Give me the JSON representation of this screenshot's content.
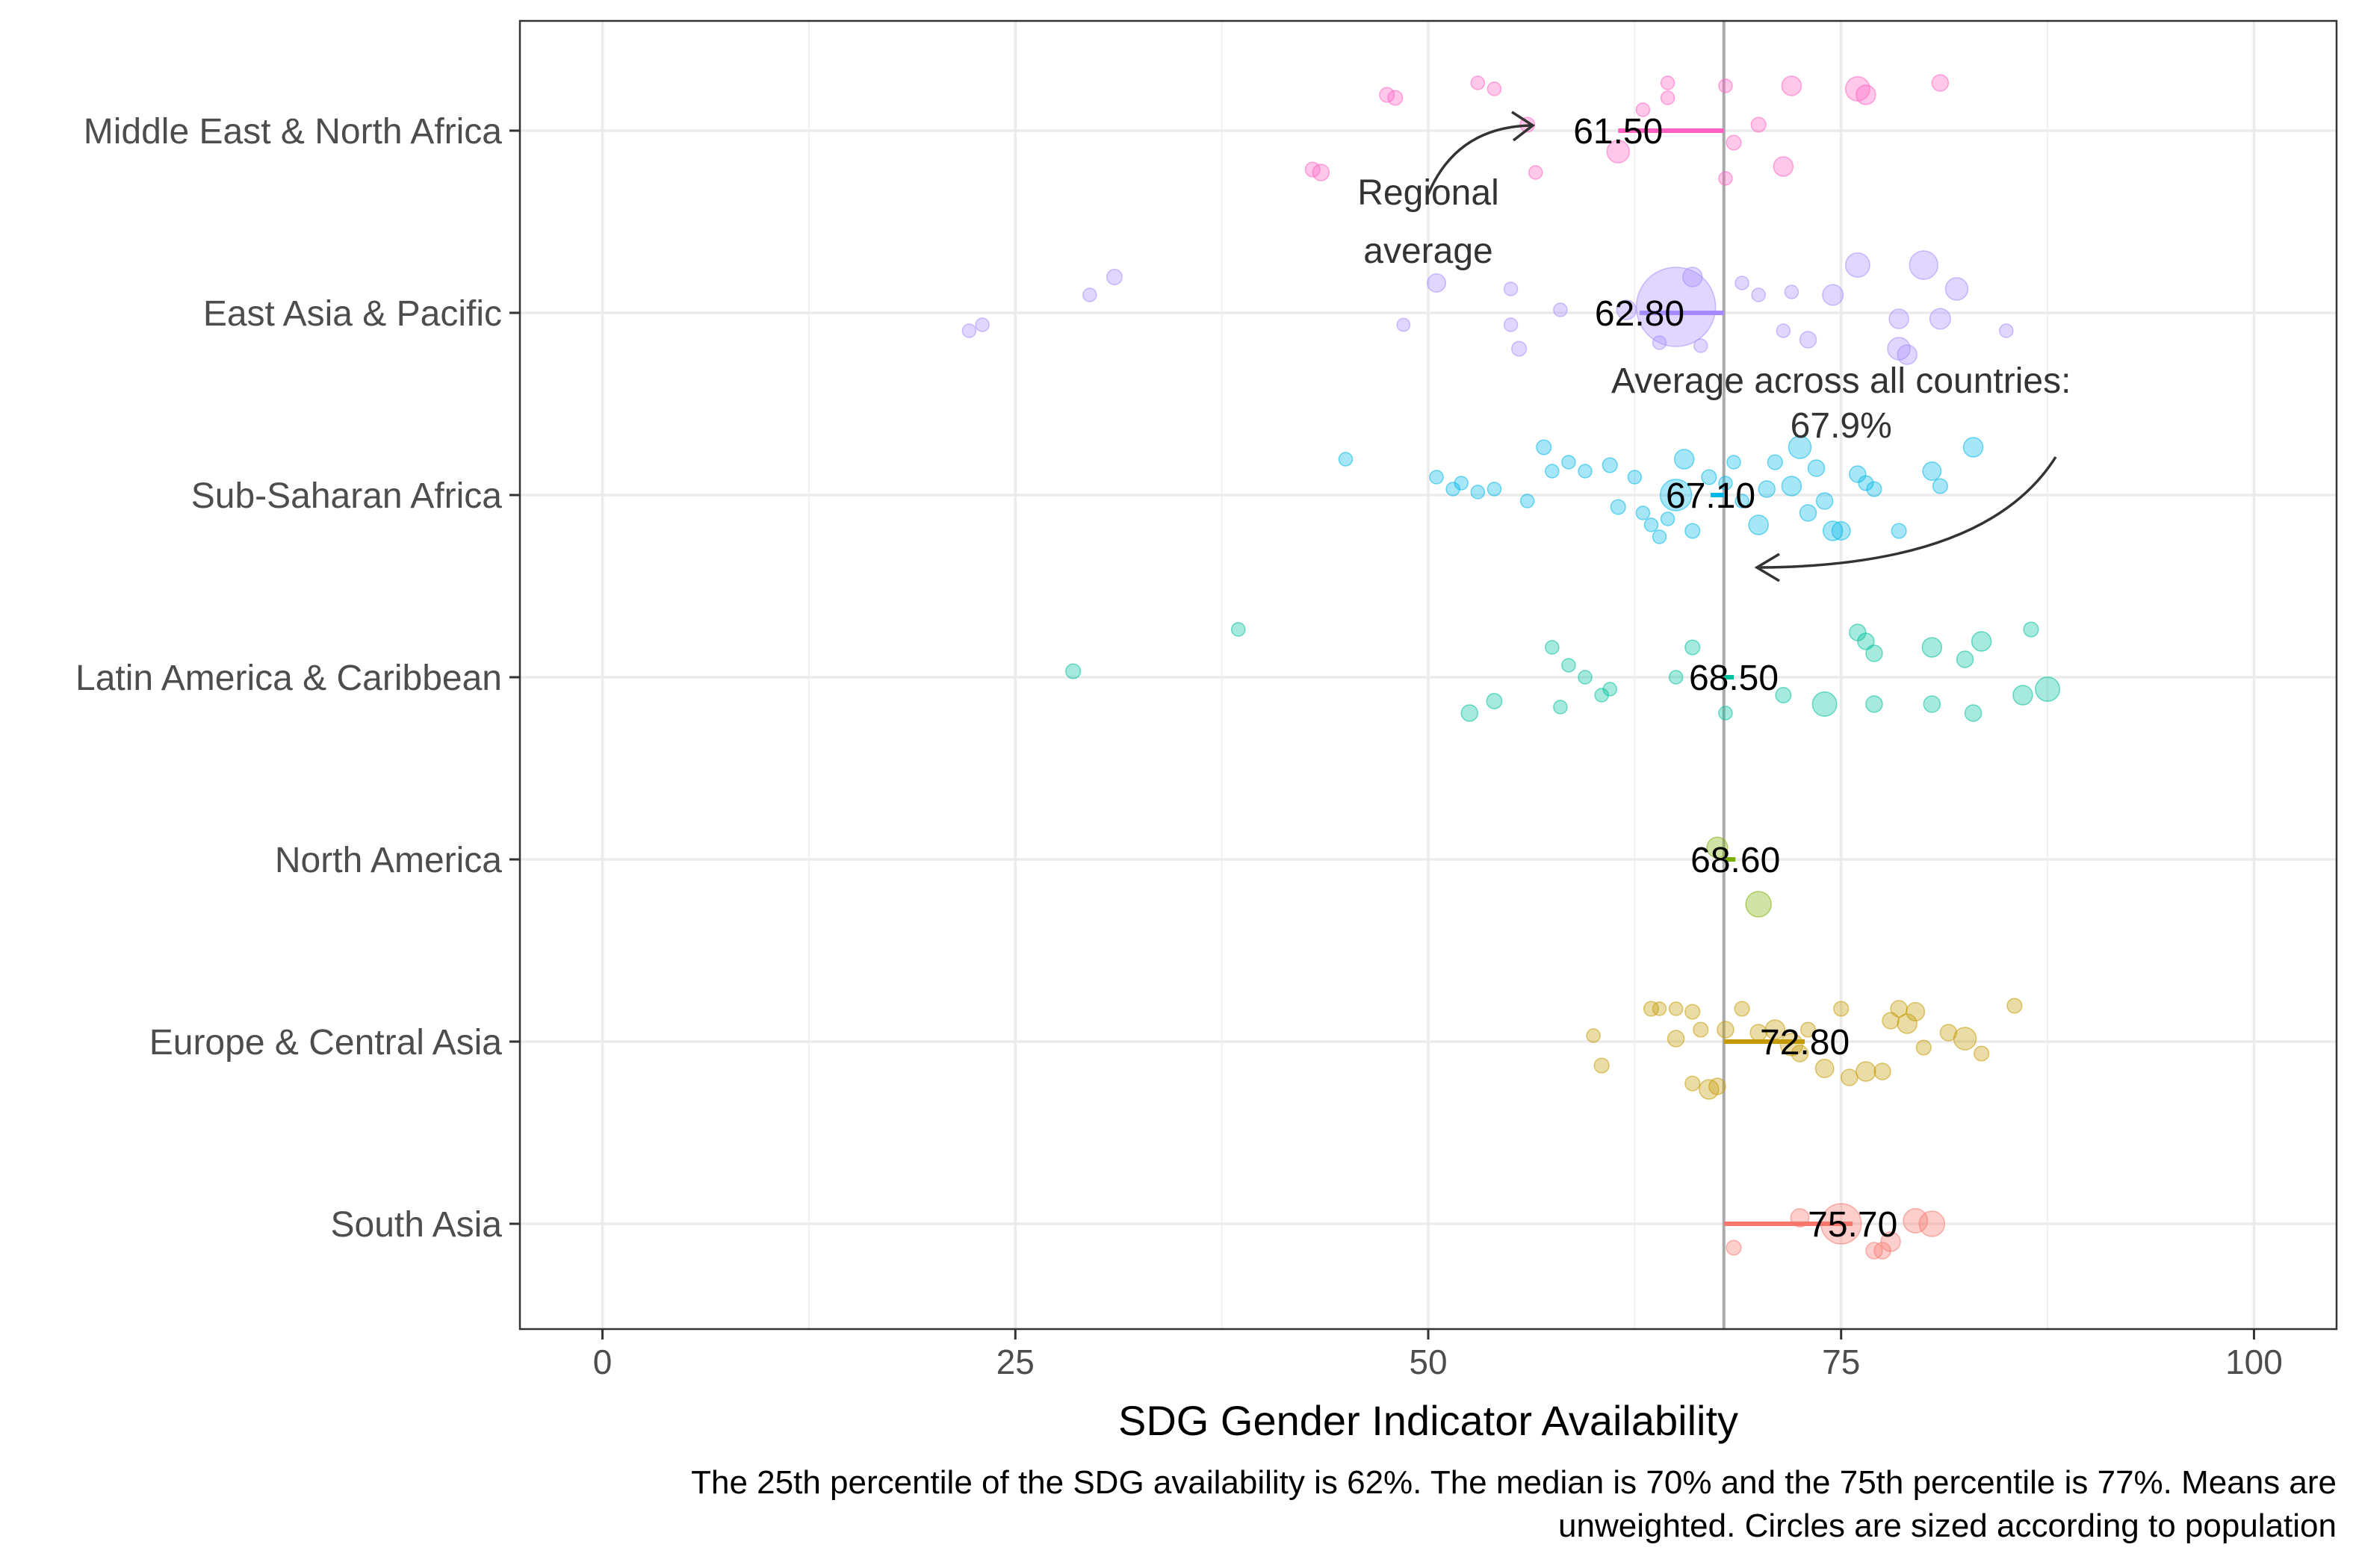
{
  "chart_data": {
    "type": "scatter",
    "xlabel": "SDG Gender Indicator Availability",
    "ylabel": "",
    "xlim": [
      -5,
      105
    ],
    "x_ticks": [
      "0",
      "25",
      "50",
      "75",
      "100"
    ],
    "grid": true,
    "legend": "none",
    "overall_average": 67.9,
    "categories": [
      "Middle East & North Africa",
      "East Asia & Pacific",
      "Sub-Saharan Africa",
      "Latin America & Caribbean",
      "North America",
      "Europe & Central Asia",
      "South Asia"
    ],
    "series": [
      {
        "name": "Middle East & North Africa",
        "color": "#FF61C3",
        "mean": 61.5,
        "mean_label": "61.50",
        "points": [
          [
            47.5,
            0.6,
            1.2
          ],
          [
            48.0,
            0.55,
            1.2
          ],
          [
            43,
            -0.65,
            1.2
          ],
          [
            43.5,
            -0.7,
            1.5
          ],
          [
            53,
            0.8,
            1.0
          ],
          [
            54,
            0.7,
            1.0
          ],
          [
            56,
            0.1,
            1.2
          ],
          [
            56.5,
            -0.7,
            1.0
          ],
          [
            61.5,
            -0.35,
            2.5
          ],
          [
            63,
            0.35,
            1.0
          ],
          [
            64.5,
            0.55,
            1.0
          ],
          [
            64.5,
            0.8,
            1.0
          ],
          [
            68,
            0.75,
            1.0
          ],
          [
            68.5,
            -0.2,
            1.2
          ],
          [
            68,
            -0.8,
            1.0
          ],
          [
            70,
            0.1,
            1.2
          ],
          [
            71.5,
            -0.6,
            2.0
          ],
          [
            72,
            0.75,
            2.0
          ],
          [
            76,
            0.7,
            2.8
          ],
          [
            76.5,
            0.6,
            2.0
          ],
          [
            81,
            0.8,
            1.5
          ]
        ]
      },
      {
        "name": "East Asia & Pacific",
        "color": "#A58AFF",
        "mean": 62.8,
        "mean_label": "62.80",
        "points": [
          [
            22.2,
            -0.3,
            1.0
          ],
          [
            23,
            -0.2,
            1.0
          ],
          [
            29.5,
            0.3,
            1.0
          ],
          [
            31,
            0.6,
            1.3
          ],
          [
            48.5,
            -0.2,
            0.9
          ],
          [
            50.5,
            0.5,
            1.8
          ],
          [
            55,
            0.4,
            1.0
          ],
          [
            55.5,
            -0.6,
            1.2
          ],
          [
            55,
            -0.2,
            1.0
          ],
          [
            58,
            0.05,
            1.0
          ],
          [
            62,
            0.05,
            2.0
          ],
          [
            65,
            0.1,
            12.0
          ],
          [
            64,
            -0.5,
            1.0
          ],
          [
            66,
            0.6,
            2.0
          ],
          [
            66.5,
            -0.55,
            1.0
          ],
          [
            69,
            0.5,
            1.0
          ],
          [
            70,
            0.3,
            1.0
          ],
          [
            71.5,
            -0.3,
            1.0
          ],
          [
            72,
            0.35,
            1.0
          ],
          [
            73,
            -0.45,
            1.5
          ],
          [
            74.5,
            0.3,
            2.2
          ],
          [
            76,
            0.8,
            2.8
          ],
          [
            78.5,
            -0.1,
            2.0
          ],
          [
            78.5,
            -0.6,
            2.5
          ],
          [
            79,
            -0.7,
            2.0
          ],
          [
            80,
            0.8,
            3.5
          ],
          [
            81,
            -0.1,
            2.2
          ],
          [
            82,
            0.4,
            2.5
          ],
          [
            85,
            -0.3,
            1.0
          ]
        ]
      },
      {
        "name": "Sub-Saharan Africa",
        "color": "#00B8E7",
        "mean": 67.1,
        "mean_label": "67.10",
        "points": [
          [
            45,
            0.6,
            1.0
          ],
          [
            50.5,
            0.3,
            1.0
          ],
          [
            51.5,
            0.1,
            1.0
          ],
          [
            52,
            0.2,
            1.0
          ],
          [
            53,
            0.05,
            1.0
          ],
          [
            54,
            0.1,
            1.0
          ],
          [
            56,
            -0.1,
            1.0
          ],
          [
            57,
            0.8,
            1.2
          ],
          [
            57.5,
            0.4,
            1.0
          ],
          [
            58.5,
            0.55,
            1.0
          ],
          [
            59.5,
            0.4,
            1.0
          ],
          [
            61,
            0.5,
            1.2
          ],
          [
            61.5,
            -0.2,
            1.2
          ],
          [
            62.5,
            0.3,
            1.0
          ],
          [
            63,
            -0.3,
            1.0
          ],
          [
            63.5,
            -0.5,
            1.0
          ],
          [
            64,
            -0.7,
            1.0
          ],
          [
            64.5,
            -0.4,
            1.0
          ],
          [
            65,
            0.0,
            4.0
          ],
          [
            65.5,
            0.6,
            2.0
          ],
          [
            66,
            -0.6,
            1.2
          ],
          [
            67,
            0.3,
            1.2
          ],
          [
            68,
            0.2,
            1.0
          ],
          [
            68.5,
            0.55,
            1.0
          ],
          [
            69,
            -0.1,
            1.0
          ],
          [
            70,
            -0.5,
            2.0
          ],
          [
            70.5,
            0.1,
            1.5
          ],
          [
            71,
            0.55,
            1.2
          ],
          [
            72,
            0.15,
            2.0
          ],
          [
            72.5,
            0.8,
            2.5
          ],
          [
            73,
            -0.3,
            1.5
          ],
          [
            73.5,
            0.45,
            1.5
          ],
          [
            74,
            -0.1,
            1.5
          ],
          [
            74.5,
            -0.6,
            2.0
          ],
          [
            75,
            -0.6,
            1.8
          ],
          [
            76,
            0.35,
            1.5
          ],
          [
            76.5,
            0.2,
            1.2
          ],
          [
            77,
            0.1,
            1.2
          ],
          [
            78.5,
            -0.6,
            1.2
          ],
          [
            80.5,
            0.4,
            1.8
          ],
          [
            81,
            0.15,
            1.2
          ],
          [
            83,
            0.8,
            2.0
          ]
        ]
      },
      {
        "name": "Latin America & Caribbean",
        "color": "#00C19F",
        "mean": 68.5,
        "mean_label": "68.50",
        "points": [
          [
            28.5,
            0.1,
            1.2
          ],
          [
            38.5,
            0.8,
            1.0
          ],
          [
            52.5,
            -0.6,
            1.5
          ],
          [
            54,
            -0.4,
            1.3
          ],
          [
            57.5,
            0.5,
            1.0
          ],
          [
            58,
            -0.5,
            1.0
          ],
          [
            58.5,
            0.2,
            1.0
          ],
          [
            59.5,
            0.0,
            1.0
          ],
          [
            60.5,
            -0.3,
            1.0
          ],
          [
            61,
            -0.2,
            1.0
          ],
          [
            65,
            0.0,
            1.0
          ],
          [
            66,
            0.5,
            1.2
          ],
          [
            68,
            -0.6,
            1.0
          ],
          [
            71.5,
            -0.3,
            1.3
          ],
          [
            74,
            -0.45,
            2.8
          ],
          [
            76,
            0.75,
            1.5
          ],
          [
            76.5,
            0.6,
            1.5
          ],
          [
            77,
            0.4,
            1.5
          ],
          [
            77,
            -0.45,
            1.5
          ],
          [
            80.5,
            0.5,
            2.0
          ],
          [
            80.5,
            -0.45,
            1.5
          ],
          [
            82.5,
            0.3,
            1.5
          ],
          [
            83,
            -0.6,
            1.5
          ],
          [
            83.5,
            0.6,
            2.0
          ],
          [
            86.5,
            0.8,
            1.2
          ],
          [
            86,
            -0.3,
            2.0
          ],
          [
            87.5,
            -0.2,
            2.8
          ]
        ]
      },
      {
        "name": "North America",
        "color": "#7CAE00",
        "mean": 68.6,
        "mean_label": "68.60",
        "points": [
          [
            67.5,
            0.2,
            2.2
          ],
          [
            70,
            -0.75,
            3.0
          ]
        ]
      },
      {
        "name": "Europe & Central Asia",
        "color": "#C49A00",
        "mean": 72.8,
        "mean_label": "72.80",
        "points": [
          [
            60,
            0.1,
            1.0
          ],
          [
            60.5,
            -0.4,
            1.2
          ],
          [
            63.5,
            0.55,
            1.2
          ],
          [
            64,
            0.55,
            1.0
          ],
          [
            65,
            0.55,
            1.0
          ],
          [
            65,
            0.05,
            1.5
          ],
          [
            66,
            0.5,
            1.2
          ],
          [
            66.5,
            0.2,
            1.2
          ],
          [
            66,
            -0.7,
            1.2
          ],
          [
            67,
            -0.8,
            2.0
          ],
          [
            67.5,
            -0.75,
            1.5
          ],
          [
            68,
            0.2,
            1.5
          ],
          [
            69,
            0.55,
            1.2
          ],
          [
            70,
            0.15,
            1.5
          ],
          [
            71,
            0.2,
            2.0
          ],
          [
            72,
            -0.05,
            2.5
          ],
          [
            72.5,
            -0.2,
            1.5
          ],
          [
            73,
            0.2,
            1.2
          ],
          [
            74,
            -0.45,
            1.8
          ],
          [
            75,
            0.55,
            1.2
          ],
          [
            75.5,
            -0.6,
            1.5
          ],
          [
            76.5,
            -0.5,
            2.0
          ],
          [
            77.5,
            -0.5,
            1.5
          ],
          [
            78,
            0.35,
            1.5
          ],
          [
            78.5,
            0.55,
            1.5
          ],
          [
            79,
            0.3,
            2.0
          ],
          [
            79.5,
            0.5,
            1.8
          ],
          [
            80,
            -0.1,
            1.2
          ],
          [
            81.5,
            0.15,
            1.5
          ],
          [
            82.5,
            0.05,
            2.5
          ],
          [
            83.5,
            -0.2,
            1.2
          ],
          [
            85.5,
            0.6,
            1.2
          ]
        ]
      },
      {
        "name": "South Asia",
        "color": "#F8766D",
        "mean": 75.7,
        "mean_label": "75.70",
        "points": [
          [
            68.5,
            -0.4,
            1.2
          ],
          [
            72.5,
            0.1,
            1.8
          ],
          [
            75,
            0.0,
            5.5
          ],
          [
            77,
            -0.45,
            1.5
          ],
          [
            77.5,
            -0.45,
            1.5
          ],
          [
            78,
            -0.3,
            2.0
          ],
          [
            79.5,
            0.05,
            2.8
          ],
          [
            80.5,
            0.0,
            3.0
          ]
        ]
      }
    ],
    "annotations": {
      "regional": [
        "Regional",
        "average"
      ],
      "overall": [
        "Average across all countries:",
        "67.9%"
      ]
    },
    "caption": [
      "The 25th percentile of the SDG availability is 62%. The median is 70% and the 75th percentile is 77%. Means are",
      "unweighted. Circles are sized according to population"
    ]
  }
}
